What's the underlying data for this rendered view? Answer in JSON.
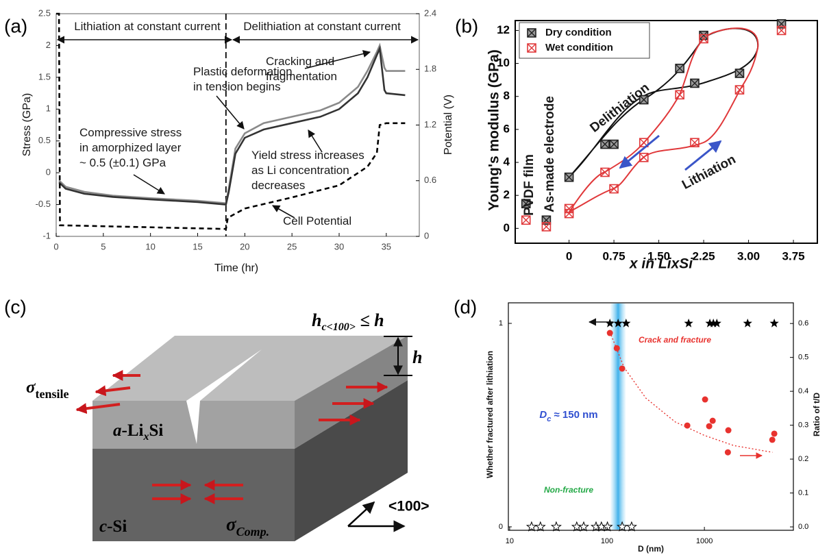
{
  "panel_labels": [
    "(a)",
    "(b)",
    "(c)",
    "(d)"
  ],
  "chart_data": [
    {
      "type": "line",
      "xlabel": "Time (hr)",
      "ylabel": "Stress (GPa)",
      "y2label": "Potential (V)",
      "xlim": [
        0,
        38.5
      ],
      "xticks": [
        0,
        5,
        10,
        15,
        20,
        25,
        30,
        35
      ],
      "ylim": [
        -1,
        2.5
      ],
      "yticks": [
        -1,
        -0.5,
        0,
        0.5,
        1,
        1.5,
        2,
        2.5
      ],
      "y2lim": [
        0,
        2.4
      ],
      "y2ticks": [
        0,
        0.6,
        1.2,
        1.8,
        2.4
      ],
      "vline": 18,
      "x": [
        0.3,
        1,
        3,
        6,
        10,
        15,
        18,
        18.3,
        19,
        20,
        22,
        25,
        28,
        30,
        32,
        33,
        34,
        34.3,
        34.8,
        35,
        37
      ],
      "series": [
        {
          "color": "#8a8a8a",
          "style": "solid",
          "values": [
            -0.12,
            -0.22,
            -0.3,
            -0.36,
            -0.4,
            -0.44,
            -0.48,
            -0.25,
            0.38,
            0.62,
            0.78,
            0.88,
            0.98,
            1.1,
            1.35,
            1.6,
            1.9,
            2.0,
            1.65,
            1.6,
            1.6
          ]
        },
        {
          "color": "#333333",
          "style": "solid",
          "values": [
            -0.15,
            -0.25,
            -0.33,
            -0.38,
            -0.42,
            -0.46,
            -0.5,
            -0.3,
            0.3,
            0.55,
            0.68,
            0.78,
            0.88,
            1.0,
            1.25,
            1.5,
            1.85,
            1.95,
            1.3,
            1.25,
            1.22
          ]
        },
        {
          "color": "#000000",
          "style": "dashed",
          "axis": "y2",
          "x": [
            0,
            0.3,
            0.4,
            18,
            18.2,
            20,
            25,
            30,
            33,
            34,
            34.3,
            35,
            37
          ],
          "values": [
            2.4,
            2.4,
            0.12,
            0.08,
            0.2,
            0.3,
            0.42,
            0.55,
            0.75,
            0.9,
            1.2,
            1.22,
            1.22
          ]
        }
      ],
      "annotations": [
        {
          "lines": [
            "Lithiation at constant current"
          ]
        },
        {
          "lines": [
            "Delithiation at constant current"
          ]
        },
        {
          "lines": [
            "Plastic deformation",
            "in tension begins"
          ]
        },
        {
          "lines": [
            "Cracking and",
            "fragmentation"
          ]
        },
        {
          "lines": [
            "Compressive stress",
            "in amorphized layer",
            "~ 0.5 (±0.1) GPa"
          ]
        },
        {
          "lines": [
            "Yield stress increases",
            "as Li concentration",
            "decreases"
          ]
        },
        {
          "lines": [
            "Cell Potential"
          ]
        }
      ]
    },
    {
      "type": "scatter",
      "xlabel": "x in LixSi",
      "ylabel": "Young's modulus (GPa)",
      "xlim": [
        -0.9,
        4.15
      ],
      "xticks": [
        0,
        0.75,
        {
          "value": 1.5,
          "label": "1.50"
        },
        2.25,
        {
          "value": 3,
          "label": "3.00"
        },
        3.75
      ],
      "ylim": [
        -0.9,
        12.6
      ],
      "yticks": [
        0,
        2,
        4,
        6,
        8,
        10,
        12
      ],
      "legend": "upper left",
      "series": [
        {
          "name": "Dry condition",
          "color": "#222222",
          "marker": "boxx",
          "x": [
            -0.72,
            -0.38,
            0,
            0.6,
            0.75,
            1.25,
            1.85,
            2.1,
            2.25,
            2.85,
            3.55
          ],
          "values": [
            1.5,
            0.5,
            3.1,
            5.1,
            5.1,
            7.8,
            9.7,
            8.8,
            11.7,
            9.4,
            12.4
          ]
        },
        {
          "name": "Wet condition",
          "color": "#e0383a",
          "marker": "boxx",
          "x": [
            -0.72,
            -0.38,
            0,
            0,
            0.6,
            0.75,
            1.25,
            1.25,
            1.85,
            2.1,
            2.25,
            2.85,
            3.55
          ],
          "values": [
            0.5,
            0.1,
            1.2,
            0.9,
            3.4,
            2.4,
            5.2,
            4.3,
            8.1,
            5.2,
            11.5,
            8.4,
            12.0
          ]
        }
      ],
      "annotations": [
        {
          "lines": [
            "Delithiation"
          ]
        },
        {
          "lines": [
            "Lithiation"
          ]
        },
        {
          "lines": [
            "PVDF film"
          ]
        },
        {
          "lines": [
            "As-made electrode"
          ]
        }
      ]
    },
    {
      "type": "scatter",
      "xlabel": "D (nm)",
      "ylabel": "Whether fractured after lithiation",
      "y2label": "Ratio of t/D",
      "xlog": true,
      "xlim": [
        9.7,
        8200
      ],
      "xticks": [
        10,
        100,
        1000
      ],
      "ylim": [
        -0.017,
        1.101
      ],
      "yticks": [
        0,
        1
      ],
      "y2lim": [
        -0.01,
        0.661
      ],
      "y2ticks": [
        {
          "value": 0,
          "label": "0.0"
        },
        0.1,
        0.2,
        0.3,
        0.4,
        0.5,
        0.6
      ],
      "band": 130,
      "series": [
        {
          "color": "#000000",
          "marker": "star",
          "x": [
            107,
            130,
            157,
            689,
            1137,
            1236,
            1342,
            2780,
            5220
          ],
          "values": [
            1,
            1,
            1,
            1,
            1,
            1,
            1,
            1,
            1
          ]
        },
        {
          "color": "#000000",
          "marker": "star-open",
          "x": [
            16.8,
            20.7,
            30.1,
            48.9,
            57.6,
            77.1,
            87.6,
            101,
            143,
            179
          ],
          "values": [
            0,
            0,
            0,
            0,
            0,
            0,
            0,
            0,
            0,
            0
          ]
        },
        {
          "color": "#e8322e",
          "marker": "circle",
          "axis": "y2",
          "x": [
            107,
            126,
            143,
            667,
            1016,
            1216,
            1120,
            1762,
            1742,
            5220,
            4980
          ],
          "values": [
            0.572,
            0.527,
            0.467,
            0.299,
            0.376,
            0.313,
            0.297,
            0.285,
            0.22,
            0.275,
            0.257
          ]
        },
        {
          "color": "#e8322e",
          "style": "dotted",
          "axis": "y2",
          "x": [
            107,
            150,
            250,
            500,
            1000,
            2000,
            5000
          ],
          "values": [
            0.575,
            0.47,
            0.38,
            0.31,
            0.27,
            0.24,
            0.22
          ]
        }
      ],
      "annotations": [
        {
          "lines": [
            "Crack and fracture"
          ]
        },
        {
          "lines": [
            "Non-fracture"
          ]
        },
        {
          "text": "D",
          "sub": "c",
          "rest": " ≈ 150 nm"
        }
      ]
    }
  ],
  "diagram": {
    "h_condition": {
      "base": "h",
      "sub": "c<100>",
      "rest": " ≤ h"
    },
    "h": "h",
    "tensile": {
      "base": "σ",
      "sub": "tensile"
    },
    "alloy": {
      "pre": "a",
      "mid": "-Li",
      "sub": "x",
      "post": "Si"
    },
    "substrate": {
      "pre": "c",
      "post": "-Si"
    },
    "compression": {
      "base": "σ",
      "sub": "Comp."
    },
    "direction": "<100>"
  }
}
